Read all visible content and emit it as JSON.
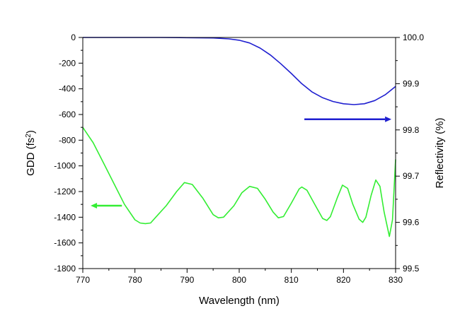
{
  "chart_data": {
    "type": "line",
    "title": "",
    "xlabel": "Wavelength (nm)",
    "ylabel_left": {
      "base": "GDD (fs",
      "sup": "2",
      "tail": ")"
    },
    "ylabel_right": "Reflectivity (%)",
    "x_range": [
      770,
      830
    ],
    "y_left_range": [
      -1800,
      0
    ],
    "y_right_range": [
      99.5,
      100.0
    ],
    "x_ticks": [
      770,
      780,
      790,
      800,
      810,
      820,
      830
    ],
    "x_tick_labels": [
      "770",
      "780",
      "790",
      "800",
      "810",
      "820",
      "830"
    ],
    "y_left_ticks": [
      0,
      -200,
      -400,
      -600,
      -800,
      -1000,
      -1200,
      -1400,
      -1600,
      -1800
    ],
    "y_left_tick_labels": [
      "0",
      "-200",
      "-400",
      "-600",
      "-800",
      "-1000",
      "-1200",
      "-1400",
      "-1600",
      "-1800"
    ],
    "y_right_ticks": [
      100.0,
      99.9,
      99.8,
      99.7,
      99.6,
      99.5
    ],
    "y_right_tick_labels": [
      "100.0",
      "99.9",
      "99.8",
      "99.7",
      "99.6",
      "99.5"
    ],
    "grid": false,
    "series": [
      {
        "axis": "right",
        "color": "#1f1fd0",
        "points": [
          [
            770,
            100.0
          ],
          [
            785,
            100.0
          ],
          [
            790,
            99.9995
          ],
          [
            795,
            99.999
          ],
          [
            798,
            99.997
          ],
          [
            800,
            99.994
          ],
          [
            802,
            99.988
          ],
          [
            804,
            99.977
          ],
          [
            806,
            99.962
          ],
          [
            808,
            99.943
          ],
          [
            810,
            99.922
          ],
          [
            812,
            99.9
          ],
          [
            814,
            99.882
          ],
          [
            816,
            99.8695
          ],
          [
            818,
            99.8615
          ],
          [
            820,
            99.8565
          ],
          [
            822,
            99.8548
          ],
          [
            824,
            99.8565
          ],
          [
            826,
            99.8635
          ],
          [
            828,
            99.876
          ],
          [
            830,
            99.894
          ]
        ]
      },
      {
        "axis": "left",
        "color": "#33ee33",
        "points": [
          [
            770,
            -700
          ],
          [
            772,
            -820
          ],
          [
            774,
            -980
          ],
          [
            776,
            -1140
          ],
          [
            778,
            -1300
          ],
          [
            780,
            -1420
          ],
          [
            781,
            -1445
          ],
          [
            782,
            -1450
          ],
          [
            783,
            -1445
          ],
          [
            784,
            -1400
          ],
          [
            786,
            -1310
          ],
          [
            788,
            -1200
          ],
          [
            789.5,
            -1130
          ],
          [
            791,
            -1145
          ],
          [
            793,
            -1250
          ],
          [
            795,
            -1380
          ],
          [
            796,
            -1405
          ],
          [
            797,
            -1400
          ],
          [
            799,
            -1310
          ],
          [
            800.5,
            -1210
          ],
          [
            802,
            -1160
          ],
          [
            803.5,
            -1175
          ],
          [
            805,
            -1260
          ],
          [
            806.5,
            -1360
          ],
          [
            807.5,
            -1405
          ],
          [
            808.5,
            -1395
          ],
          [
            810,
            -1290
          ],
          [
            811.5,
            -1180
          ],
          [
            812,
            -1165
          ],
          [
            813,
            -1190
          ],
          [
            814.5,
            -1300
          ],
          [
            816,
            -1410
          ],
          [
            816.8,
            -1425
          ],
          [
            817.5,
            -1395
          ],
          [
            818.8,
            -1250
          ],
          [
            819.8,
            -1150
          ],
          [
            820.8,
            -1175
          ],
          [
            821.8,
            -1300
          ],
          [
            823,
            -1415
          ],
          [
            823.7,
            -1440
          ],
          [
            824.3,
            -1400
          ],
          [
            825.3,
            -1230
          ],
          [
            826.2,
            -1110
          ],
          [
            827,
            -1160
          ],
          [
            827.8,
            -1360
          ],
          [
            828.8,
            -1550
          ],
          [
            829.4,
            -1420
          ],
          [
            830,
            -950
          ]
        ]
      }
    ],
    "annotations": [
      {
        "type": "arrow",
        "direction": "left",
        "color": "#33ee33",
        "x_from": 777.5,
        "x_to": 771.5,
        "y_left": -1310
      },
      {
        "type": "arrow",
        "direction": "right",
        "color": "#1f1fd0",
        "x_from": 812.5,
        "x_to": 829.2,
        "y_right": 99.823
      }
    ]
  }
}
